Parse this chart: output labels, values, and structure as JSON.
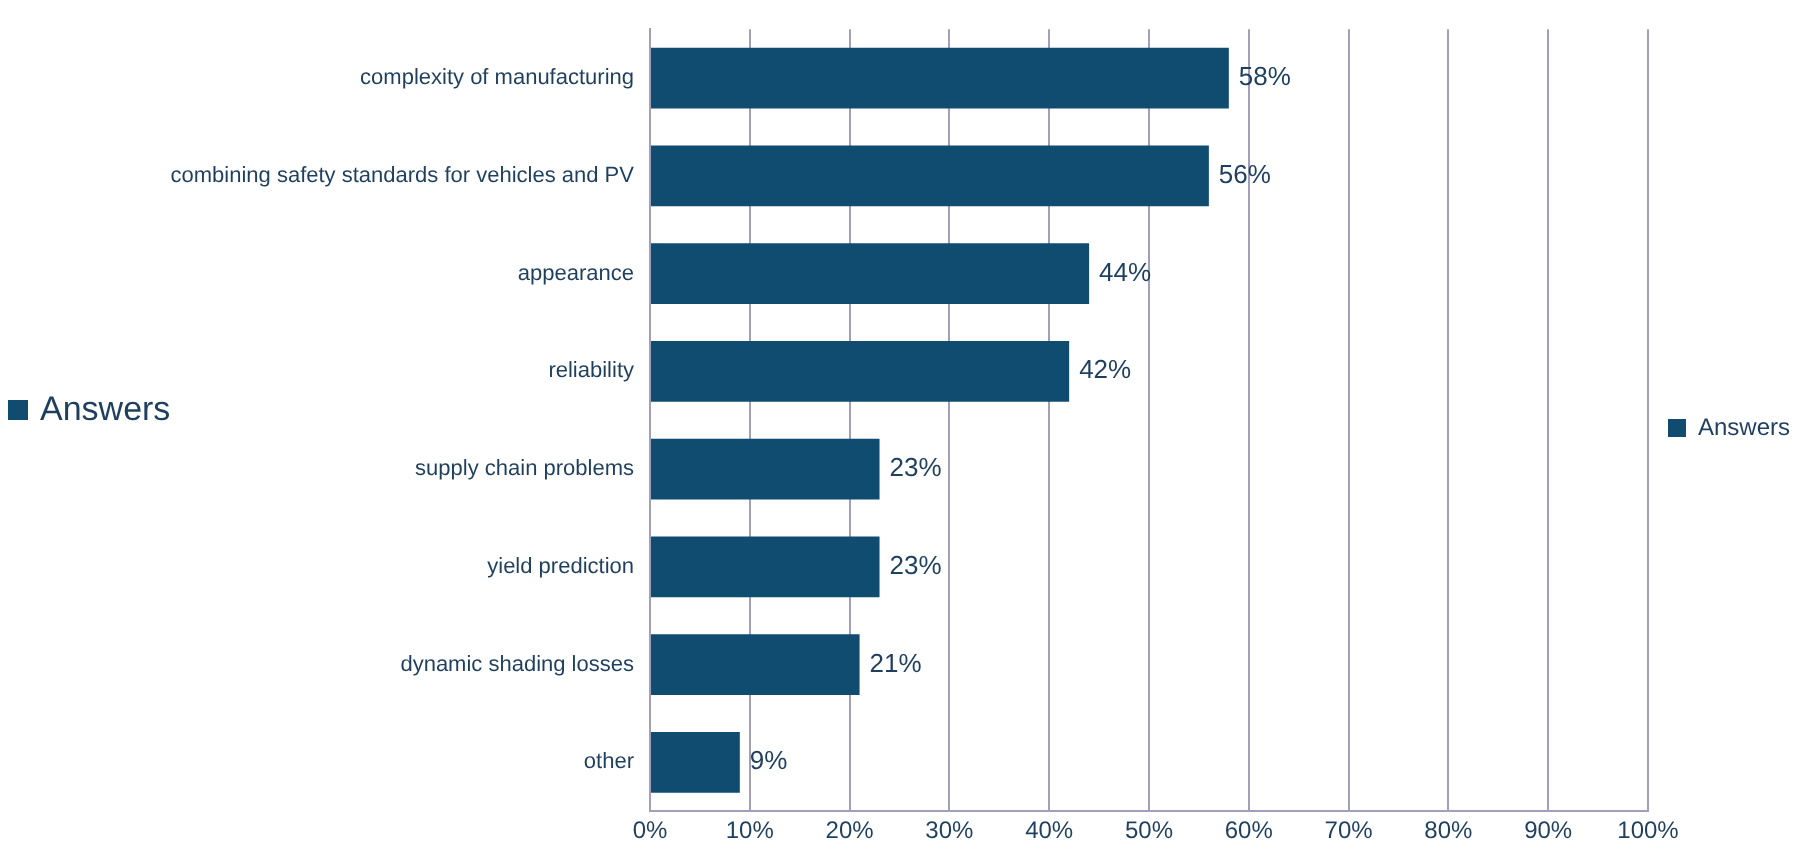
{
  "chart_data": {
    "type": "bar",
    "orientation": "horizontal",
    "categories": [
      "complexity of manufacturing",
      "combining safety standards for vehicles and PV",
      "appearance",
      "reliability",
      "supply chain problems",
      "yield prediction",
      "dynamic shading losses",
      "other"
    ],
    "series": [
      {
        "name": "Answers",
        "color": "#0f4c70",
        "values": [
          58,
          56,
          44,
          42,
          23,
          23,
          21,
          9
        ],
        "value_labels": [
          "58%",
          "56%",
          "44%",
          "42%",
          "23%",
          "23%",
          "21%",
          "9%"
        ]
      }
    ],
    "xlim": [
      0,
      100
    ],
    "xticks": [
      {
        "value": 0,
        "label": "0%"
      },
      {
        "value": 10,
        "label": "10%"
      },
      {
        "value": 20,
        "label": "20%"
      },
      {
        "value": 30,
        "label": "30%"
      },
      {
        "value": 40,
        "label": "40%"
      },
      {
        "value": 50,
        "label": "50%"
      },
      {
        "value": 60,
        "label": "60%"
      },
      {
        "value": 70,
        "label": "70%"
      },
      {
        "value": 80,
        "label": "80%"
      },
      {
        "value": 90,
        "label": "90%"
      },
      {
        "value": 100,
        "label": "100%"
      }
    ],
    "grid": "x",
    "legend": "right",
    "annotations": [
      "Answers"
    ]
  }
}
